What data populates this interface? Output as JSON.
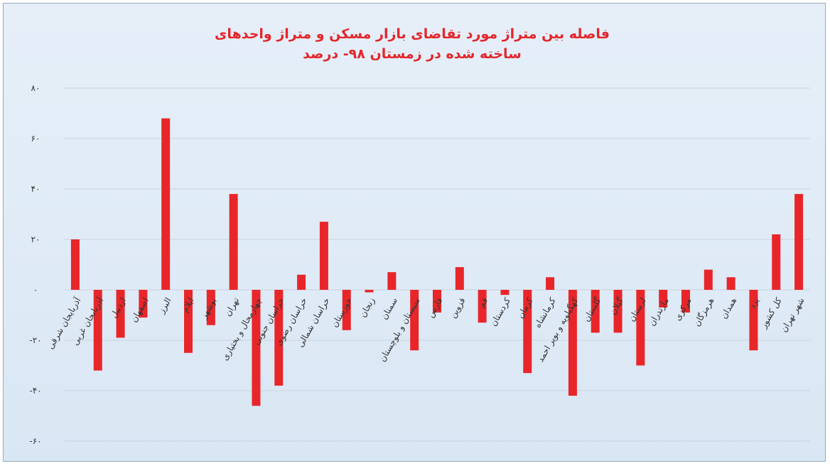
{
  "chart_data": {
    "type": "bar",
    "title": "فاصله بین متراژ مورد تقاضای بازار مسکن و متراژ واحدهای ساخته شده در زمستان ۹۸- درصد",
    "categories": [
      "آذربایجان شرقی",
      "آذربایجان غربی",
      "اردبیل",
      "اصفهان",
      "البرز",
      "ایلام",
      "بوشهر",
      "تهران",
      "چهارمحال و بختیاری",
      "خراسان جنوبی",
      "خراسان رضوی",
      "خراسان شمالی",
      "خوزستان",
      "زنجان",
      "سمنان",
      "سیستان و بلوچستان",
      "فارس",
      "قزوین",
      "قم",
      "کردستان",
      "کرمان",
      "کرمانشاه",
      "کهگیلویه و بویر احمد",
      "گلستان",
      "گیلان",
      "لرستان",
      "مازندران",
      "مرکزی",
      "هرمزگان",
      "همدان",
      "یزد",
      "کل کشور",
      "شهر تهران"
    ],
    "values": [
      20,
      -32,
      -19,
      -11,
      68,
      -25,
      -14,
      38,
      -46,
      -38,
      6,
      27,
      -16,
      -1,
      7,
      -24,
      -9,
      9,
      -13,
      -2,
      -33,
      5,
      -42,
      -17,
      -17,
      -30,
      -7,
      -9,
      8,
      5,
      -24,
      22,
      38
    ],
    "color": "#e8262a",
    "ylim": [
      -60,
      80
    ],
    "yticks": [
      {
        "value": -60,
        "label": "-۶۰"
      },
      {
        "value": -40,
        "label": "-۴۰"
      },
      {
        "value": -20,
        "label": "-۲۰"
      },
      {
        "value": 0,
        "label": "۰"
      },
      {
        "value": 20,
        "label": "۲۰"
      },
      {
        "value": 40,
        "label": "۴۰"
      },
      {
        "value": 60,
        "label": "۶۰"
      },
      {
        "value": 80,
        "label": "۸۰"
      }
    ],
    "grid": true
  }
}
